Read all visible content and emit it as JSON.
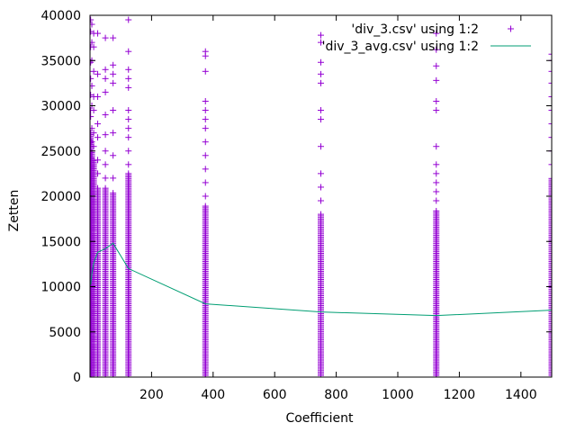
{
  "chart_data": {
    "type": "scatter",
    "xlabel": "Coefficient",
    "ylabel": "Zetten",
    "xlim": [
      0,
      1500
    ],
    "ylim": [
      0,
      40000
    ],
    "x_ticks": [
      200,
      400,
      600,
      800,
      1000,
      1200,
      1400
    ],
    "y_ticks": [
      0,
      5000,
      10000,
      15000,
      20000,
      25000,
      30000,
      35000,
      40000
    ],
    "grid": false,
    "legend_position": "top-right",
    "colors": {
      "scatter": "#9400d3",
      "line": "#009e73"
    },
    "series": [
      {
        "name": "'div_3.csv' using 1:2",
        "style": "points",
        "marker": "+",
        "columns": [
          {
            "x": 2,
            "y_min": 0,
            "y_max": 39500,
            "dense_max": 27000,
            "outliers": [
              28800,
              29500,
              31200,
              33000,
              34800,
              36500,
              38200
            ]
          },
          {
            "x": 6,
            "y_min": 0,
            "y_max": 39000,
            "dense_max": 25000,
            "outliers": [
              26000,
              27500,
              30000,
              32200,
              35000,
              37000
            ]
          },
          {
            "x": 12,
            "y_min": 0,
            "y_max": 38000,
            "dense_max": 24000,
            "outliers": [
              25500,
              27000,
              29500,
              31000,
              33800,
              36500
            ]
          },
          {
            "x": 25,
            "y_min": 0,
            "y_max": 38000,
            "dense_max": 21000,
            "outliers": [
              22500,
              24000,
              26500,
              28000,
              31000,
              33500
            ]
          },
          {
            "x": 50,
            "y_min": 0,
            "y_max": 37500,
            "dense_max": 21000,
            "outliers": [
              22000,
              23500,
              25000,
              26800,
              29000,
              31500,
              33000,
              34000
            ]
          },
          {
            "x": 75,
            "y_min": 0,
            "y_max": 37500,
            "dense_max": 20500,
            "outliers": [
              22000,
              24500,
              27000,
              29500,
              32500,
              33500,
              34500
            ]
          },
          {
            "x": 125,
            "y_min": 0,
            "y_max": 39500,
            "dense_max": 22500,
            "outliers": [
              23500,
              25000,
              26500,
              27500,
              28500,
              29500,
              32000,
              33000,
              34000,
              36000
            ]
          },
          {
            "x": 375,
            "y_min": 0,
            "y_max": 36000,
            "dense_max": 19000,
            "outliers": [
              20000,
              21500,
              23000,
              24500,
              26000,
              27500,
              28500,
              29500,
              30500,
              33800,
              35500
            ]
          },
          {
            "x": 750,
            "y_min": 0,
            "y_max": 37800,
            "dense_max": 18000,
            "outliers": [
              19500,
              21000,
              22500,
              25500,
              28500,
              29500,
              32500,
              33500,
              34800,
              37000
            ]
          },
          {
            "x": 1125,
            "y_min": 0,
            "y_max": 38000,
            "dense_max": 18500,
            "outliers": [
              19500,
              20500,
              21500,
              22500,
              23500,
              25500,
              29500,
              30500,
              32800,
              34400,
              36200
            ]
          },
          {
            "x": 1500,
            "y_min": 0,
            "y_max": 35700,
            "dense_max": 22000,
            "outliers": [
              23500,
              25000,
              26500,
              28000,
              29500,
              31000,
              32500,
              33800,
              35000
            ]
          }
        ]
      },
      {
        "name": "'div_3_avg.csv' using 1:2",
        "style": "line",
        "points": [
          {
            "x": 2,
            "y": 10200
          },
          {
            "x": 6,
            "y": 11400
          },
          {
            "x": 12,
            "y": 12600
          },
          {
            "x": 25,
            "y": 13800
          },
          {
            "x": 50,
            "y": 14200
          },
          {
            "x": 75,
            "y": 14800
          },
          {
            "x": 125,
            "y": 12000
          },
          {
            "x": 375,
            "y": 8100
          },
          {
            "x": 750,
            "y": 7200
          },
          {
            "x": 1125,
            "y": 6800
          },
          {
            "x": 1500,
            "y": 7400
          }
        ]
      }
    ]
  }
}
